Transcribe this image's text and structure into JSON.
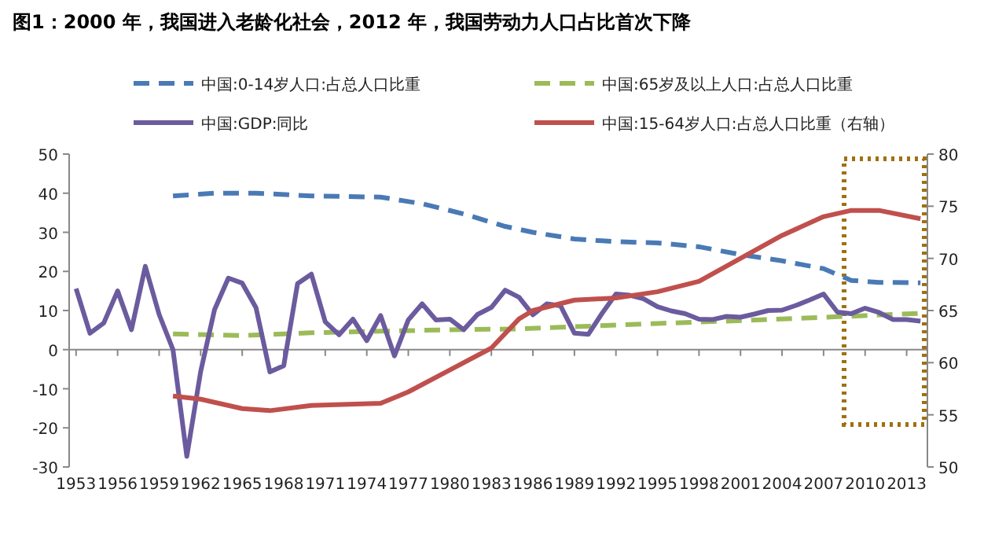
{
  "chart_data": {
    "type": "line",
    "title": "图1：2000 年，我国进入老龄化社会，2012 年，我国劳动力人口占比首次下降",
    "xlim": [
      1952.5,
      2014.5
    ],
    "xticks": [
      1953,
      1956,
      1959,
      1962,
      1965,
      1968,
      1971,
      1974,
      1977,
      1980,
      1983,
      1986,
      1989,
      1992,
      1995,
      1998,
      2001,
      2004,
      2007,
      2010,
      2013
    ],
    "ylim": [
      -30,
      50
    ],
    "yticks": [
      -30,
      -20,
      -10,
      0,
      10,
      20,
      30,
      40,
      50
    ],
    "y2lim": [
      50,
      80
    ],
    "y2ticks": [
      50,
      55,
      60,
      65,
      70,
      75,
      80
    ],
    "legend": "top",
    "series": [
      {
        "name": "中国:0-14岁人口:占总人口比重",
        "color": "#4a7ab5",
        "line_style": "dashed",
        "x": [
          1960,
          1963,
          1966,
          1970,
          1975,
          1978,
          1981,
          1984,
          1986,
          1989,
          1992,
          1995,
          1998,
          2001,
          2004,
          2007,
          2009,
          2011,
          2014
        ],
        "values": [
          39.3,
          40,
          40,
          39.3,
          39,
          37.3,
          34.7,
          31.5,
          30,
          28.3,
          27.6,
          27.3,
          26.3,
          24.3,
          22.7,
          20.7,
          17.7,
          17.2,
          17.1
        ]
      },
      {
        "name": "中国:65岁及以上人口:占总人口比重",
        "color": "#9bbb59",
        "line_style": "dashed",
        "x": [
          1960,
          1965,
          1970,
          1975,
          1980,
          1985,
          1990,
          1995,
          2000,
          2005,
          2010,
          2014
        ],
        "values": [
          4,
          3.6,
          4.3,
          4.7,
          5.1,
          5.3,
          6,
          6.7,
          7.3,
          8,
          8.7,
          9.3
        ]
      },
      {
        "name": "中国:GDP:同比",
        "color": "#6b5b9e",
        "line_style": "solid",
        "x": [
          1953,
          1954,
          1955,
          1956,
          1957,
          1958,
          1959,
          1960,
          1961,
          1962,
          1963,
          1964,
          1965,
          1966,
          1967,
          1968,
          1969,
          1970,
          1971,
          1972,
          1973,
          1974,
          1975,
          1976,
          1977,
          1978,
          1979,
          1980,
          1981,
          1982,
          1983,
          1984,
          1985,
          1986,
          1987,
          1988,
          1989,
          1990,
          1991,
          1992,
          1993,
          1994,
          1995,
          1996,
          1997,
          1998,
          1999,
          2000,
          2001,
          2002,
          2003,
          2004,
          2005,
          2006,
          2007,
          2008,
          2009,
          2010,
          2011,
          2012,
          2013,
          2014
        ],
        "values": [
          15.6,
          4.2,
          6.8,
          15,
          5.1,
          21.3,
          9,
          0,
          -27.3,
          -5.6,
          10.2,
          18.3,
          17,
          10.7,
          -5.7,
          -4.1,
          16.9,
          19.3,
          7.1,
          3.8,
          7.8,
          2.3,
          8.7,
          -1.6,
          7.6,
          11.7,
          7.6,
          7.8,
          5.1,
          9,
          10.8,
          15.2,
          13.4,
          8.9,
          11.7,
          11.2,
          4.2,
          3.9,
          9.3,
          14.2,
          13.9,
          13,
          11,
          9.9,
          9.2,
          7.8,
          7.7,
          8.5,
          8.3,
          9.1,
          10,
          10.1,
          11.3,
          12.7,
          14.2,
          9.6,
          9.2,
          10.6,
          9.5,
          7.7,
          7.7,
          7.3
        ]
      },
      {
        "name": "中国:15-64岁人口:占总人口比重（右轴）",
        "color": "#c0504d",
        "line_style": "solid",
        "axis": "y2",
        "x": [
          1960,
          1962,
          1965,
          1967,
          1970,
          1975,
          1977,
          1980,
          1983,
          1985,
          1986,
          1989,
          1992,
          1995,
          1998,
          2001,
          2004,
          2007,
          2009,
          2011,
          2014
        ],
        "values": [
          56.8,
          56.5,
          55.6,
          55.4,
          55.9,
          56.1,
          57.2,
          59.3,
          61.4,
          64.2,
          65,
          66,
          66.2,
          66.8,
          67.8,
          70,
          72.2,
          74,
          74.6,
          74.6,
          73.8
        ]
      }
    ]
  }
}
